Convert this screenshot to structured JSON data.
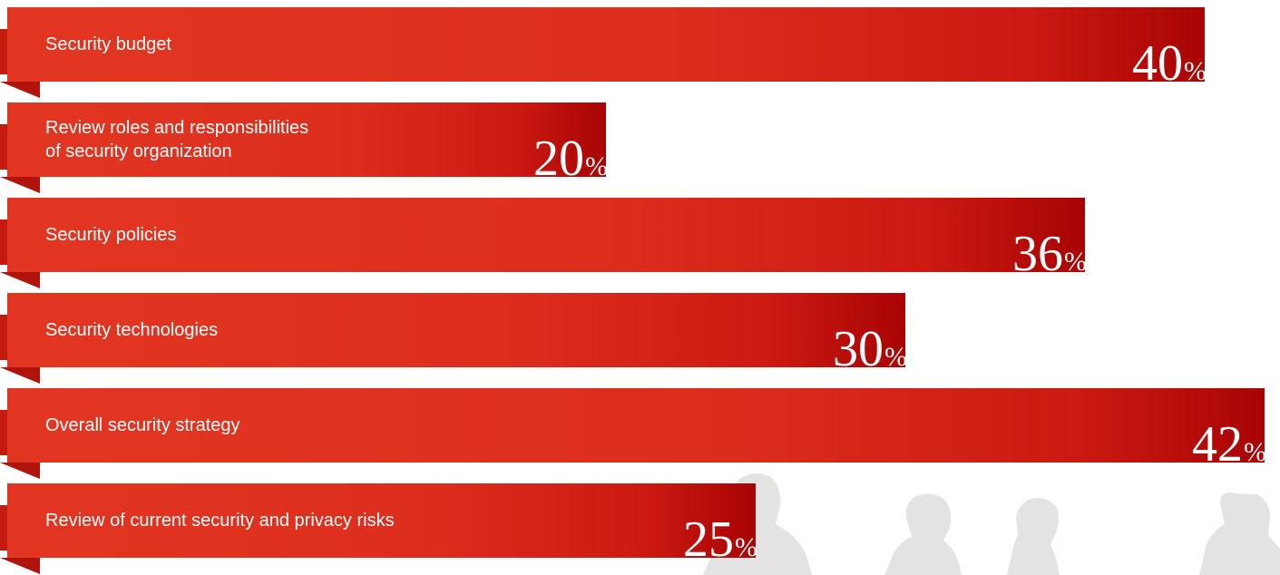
{
  "chart_data": {
    "type": "bar",
    "orientation": "horizontal",
    "categories": [
      "Security budget",
      "Review roles and responsibilities\nof security organization",
      "Security policies",
      "Security technologies",
      "Overall security strategy",
      "Review of current security and privacy risks"
    ],
    "values": [
      40,
      20,
      36,
      30,
      42,
      25
    ],
    "value_labels": [
      "40",
      "20",
      "36",
      "30",
      "42",
      "25"
    ],
    "unit_symbol": "%",
    "xlim": [
      0,
      42
    ],
    "grid": false,
    "legend": "none",
    "colors": {
      "bar_start": "#e23622",
      "bar_end": "#a80404",
      "fold": "#b0140c",
      "label_text": "#ffffff",
      "silhouettes": "#e3e3e3"
    }
  }
}
